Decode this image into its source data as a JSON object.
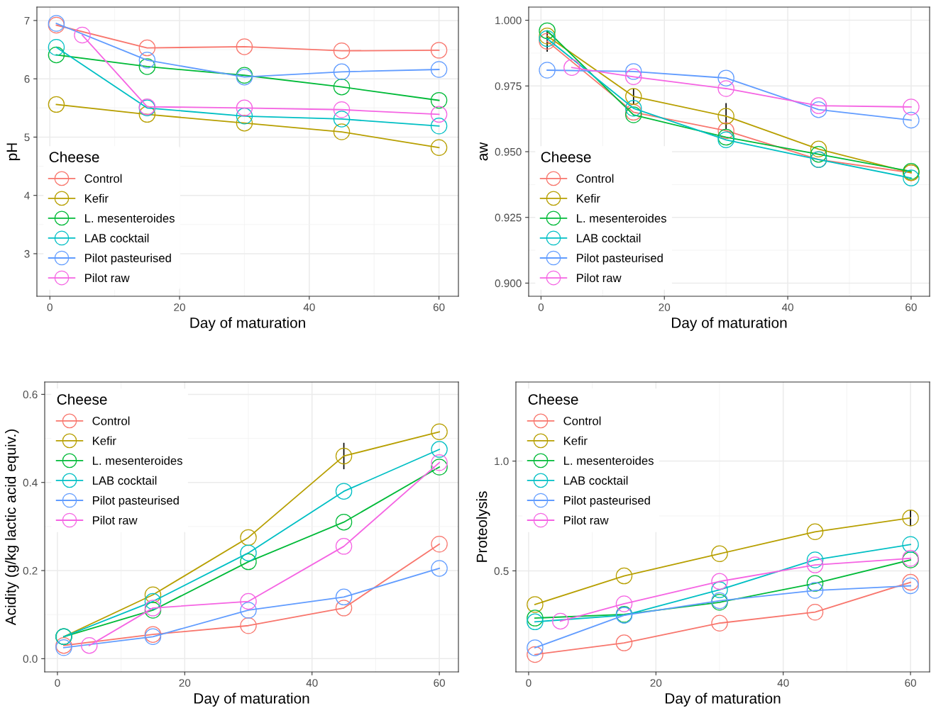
{
  "chart_data": [
    {
      "type": "line",
      "xlabel": "Day of maturation",
      "ylabel": "pH",
      "legend_title": "Cheese",
      "legend": "bottom left",
      "grid": true,
      "marker": "circle",
      "line_style": "solid",
      "x": [
        1,
        15,
        30,
        45,
        60
      ],
      "xlim": [
        -2,
        63
      ],
      "xticks": [
        0,
        20,
        40,
        60
      ],
      "ylim": [
        2.27,
        7.23
      ],
      "yticks": [
        3,
        4,
        5,
        6,
        7
      ],
      "series": [
        {
          "name": "Control",
          "color": "#f8766d",
          "values": [
            6.92,
            6.53,
            6.55,
            6.48,
            6.49
          ]
        },
        {
          "name": "Kefir",
          "color": "#b79f00",
          "values": [
            5.56,
            5.39,
            5.24,
            5.09,
            4.82
          ]
        },
        {
          "name": "L. mesenteroides",
          "color": "#00ba38",
          "values": [
            6.41,
            6.21,
            6.06,
            5.86,
            5.63
          ]
        },
        {
          "name": "LAB cocktail",
          "color": "#00bfc4",
          "values": [
            6.54,
            5.5,
            5.36,
            5.31,
            5.19
          ]
        },
        {
          "name": "Pilot pasteurised",
          "color": "#619cff",
          "values": [
            6.95,
            6.32,
            6.03,
            6.12,
            6.16
          ]
        },
        {
          "name": "Pilot raw",
          "color": "#f564e3",
          "x": [
            5,
            15,
            30,
            45,
            60
          ],
          "values": [
            6.75,
            5.52,
            5.5,
            5.47,
            5.39
          ]
        }
      ]
    },
    {
      "type": "line",
      "xlabel": "Day of maturation",
      "ylabel": "aw",
      "legend_title": "Cheese",
      "legend": "bottom left",
      "grid": true,
      "marker": "circle",
      "line_style": "solid",
      "x": [
        1,
        15,
        30,
        45,
        60
      ],
      "xlim": [
        -2,
        63
      ],
      "xticks": [
        0,
        20,
        40,
        60
      ],
      "ylim": [
        0.895,
        1.005
      ],
      "yticks": [
        {
          "value": 0.9,
          "label": "0.900"
        },
        {
          "value": 0.925,
          "label": "0.925"
        },
        {
          "value": 0.95,
          "label": "0.950"
        },
        {
          "value": 0.975,
          "label": "0.975"
        },
        {
          "value": 1.0,
          "label": "1.000"
        }
      ],
      "series": [
        {
          "name": "Control",
          "color": "#f8766d",
          "values": [
            0.992,
            0.965,
            0.958,
            0.947,
            0.942
          ],
          "errors": [
            0.004,
            null,
            null,
            null,
            null
          ]
        },
        {
          "name": "Kefir",
          "color": "#b79f00",
          "values": [
            0.994,
            0.971,
            0.9635,
            0.951,
            0.942
          ],
          "errors": [
            null,
            0.003,
            0.005,
            null,
            null
          ]
        },
        {
          "name": "L. mesenteroides",
          "color": "#00ba38",
          "values": [
            0.996,
            0.964,
            0.9555,
            0.949,
            0.9425
          ]
        },
        {
          "name": "LAB cocktail",
          "color": "#00bfc4",
          "values": [
            0.993,
            0.9665,
            0.9545,
            0.947,
            0.94
          ]
        },
        {
          "name": "Pilot pasteurised",
          "color": "#619cff",
          "values": [
            0.981,
            0.9805,
            0.978,
            0.966,
            0.962
          ]
        },
        {
          "name": "Pilot raw",
          "color": "#f564e3",
          "x": [
            5,
            15,
            30,
            45,
            60
          ],
          "values": [
            0.982,
            0.9785,
            0.974,
            0.9675,
            0.967
          ]
        }
      ]
    },
    {
      "type": "line",
      "xlabel": "Day of maturation",
      "ylabel": "Acidity (g/kg lactic acid equiv.)",
      "legend_title": "Cheese",
      "legend": "top left",
      "grid": true,
      "marker": "circle",
      "line_style": "solid",
      "x": [
        1,
        15,
        30,
        45,
        60
      ],
      "xlim": [
        -2,
        63
      ],
      "xticks": [
        0,
        20,
        40,
        60
      ],
      "ylim": [
        -0.03,
        0.628
      ],
      "yticks": [
        {
          "value": 0,
          "label": "0.0"
        },
        0.2,
        0.4,
        0.6
      ],
      "series": [
        {
          "name": "Control",
          "color": "#f8766d",
          "values": [
            0.03,
            0.055,
            0.075,
            0.115,
            0.26
          ]
        },
        {
          "name": "Kefir",
          "color": "#b79f00",
          "values": [
            0.05,
            0.145,
            0.275,
            0.46,
            0.515
          ],
          "errors": [
            null,
            null,
            null,
            0.03,
            null
          ]
        },
        {
          "name": "L. mesenteroides",
          "color": "#00ba38",
          "values": [
            0.05,
            0.11,
            0.22,
            0.31,
            0.435
          ]
        },
        {
          "name": "LAB cocktail",
          "color": "#00bfc4",
          "values": [
            0.05,
            0.13,
            0.24,
            0.38,
            0.475
          ]
        },
        {
          "name": "Pilot pasteurised",
          "color": "#619cff",
          "values": [
            0.025,
            0.05,
            0.11,
            0.14,
            0.205
          ]
        },
        {
          "name": "Pilot raw",
          "color": "#f564e3",
          "x": [
            5,
            15,
            30,
            45,
            60
          ],
          "values": [
            0.03,
            0.115,
            0.13,
            0.255,
            0.445
          ]
        }
      ]
    },
    {
      "type": "line",
      "xlabel": "Day of maturation",
      "ylabel": "Proteolysis",
      "legend_title": "Cheese",
      "legend": "top left",
      "grid": true,
      "marker": "circle",
      "line_style": "solid",
      "x": [
        1,
        15,
        30,
        45,
        60
      ],
      "xlim": [
        -2,
        63
      ],
      "xticks": [
        0,
        20,
        40,
        60
      ],
      "ylim": [
        0.04,
        1.36
      ],
      "yticks": [
        0.5,
        {
          "value": 1.0,
          "label": "1.0"
        }
      ],
      "series": [
        {
          "name": "Control",
          "color": "#f8766d",
          "values": [
            0.119,
            0.172,
            0.262,
            0.312,
            0.448
          ]
        },
        {
          "name": "Kefir",
          "color": "#b79f00",
          "values": [
            0.347,
            0.477,
            0.578,
            0.678,
            0.741
          ],
          "errors": [
            null,
            null,
            null,
            null,
            0.037
          ]
        },
        {
          "name": "L. mesenteroides",
          "color": "#00ba38",
          "values": [
            0.285,
            0.302,
            0.357,
            0.443,
            0.55
          ]
        },
        {
          "name": "LAB cocktail",
          "color": "#00bfc4",
          "values": [
            0.268,
            0.298,
            0.414,
            0.55,
            0.62
          ]
        },
        {
          "name": "Pilot pasteurised",
          "color": "#619cff",
          "values": [
            0.15,
            0.298,
            0.364,
            0.411,
            0.432
          ]
        },
        {
          "name": "Pilot raw",
          "color": "#f564e3",
          "x": [
            5,
            15,
            30,
            45,
            60
          ],
          "values": [
            0.271,
            0.35,
            0.452,
            0.527,
            0.557
          ]
        }
      ]
    }
  ]
}
